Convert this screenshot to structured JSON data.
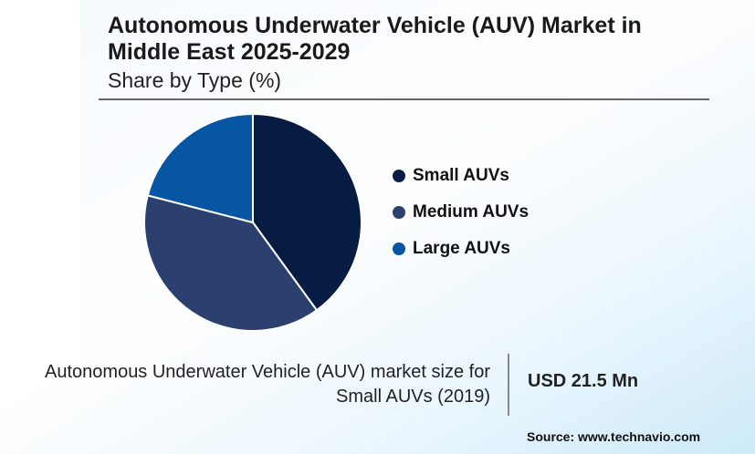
{
  "chart_data": {
    "type": "pie",
    "title": "Autonomous Underwater Vehicle (AUV) Market in Middle East 2025-2029",
    "subtitle": "Share by Type (%)",
    "categories": [
      "Small AUVs",
      "Medium AUVs",
      "Large AUVs"
    ],
    "values": [
      40,
      39,
      21
    ],
    "colors": [
      "#071c42",
      "#2c4070",
      "#0656a3"
    ],
    "legend_position": "right"
  },
  "title_line1": "Autonomous Underwater Vehicle (AUV) Market in",
  "title_line2": "Middle East 2025-2029",
  "footer": {
    "label_line1": "Autonomous Underwater Vehicle (AUV) market size for",
    "label_line2": "Small AUVs (2019)",
    "value": "USD 21.5 Mn",
    "source": "Source: www.technavio.com"
  }
}
